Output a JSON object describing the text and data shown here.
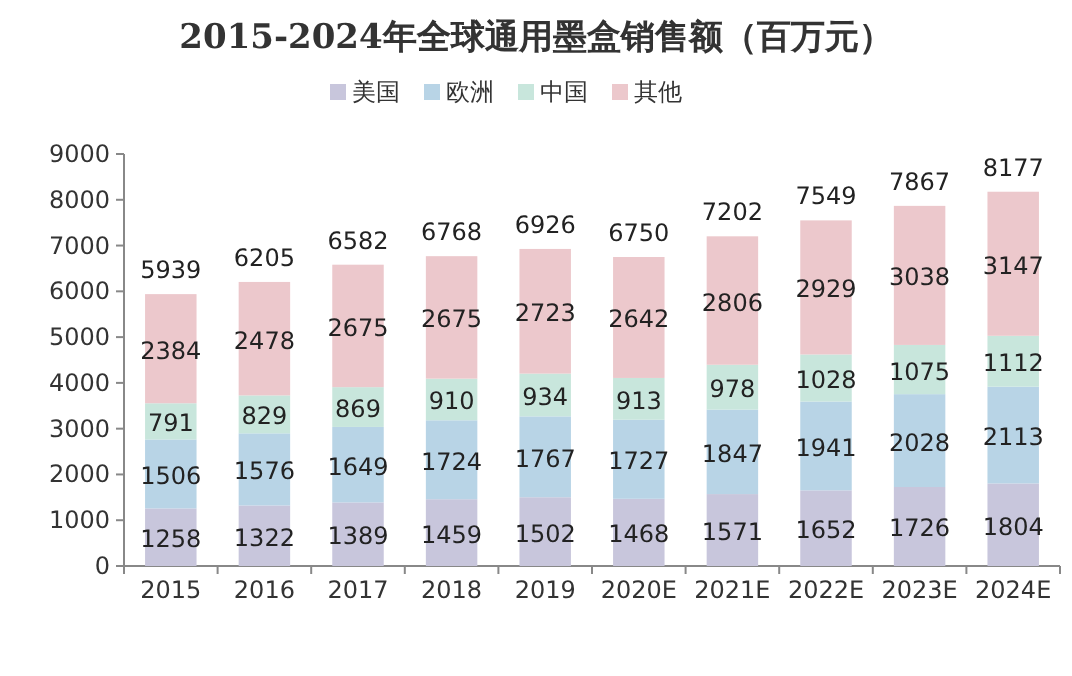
{
  "chart_data": {
    "type": "bar",
    "title": "2015-2024年全球通用墨盒销售额（百万元）",
    "stacked": true,
    "legend": "top",
    "data_labels": true,
    "categories": [
      "2015",
      "2016",
      "2017",
      "2018",
      "2019",
      "2020E",
      "2021E",
      "2022E",
      "2023E",
      "2024E"
    ],
    "series": [
      {
        "name": "美国",
        "color": "#c8c6dc",
        "values": [
          1258,
          1322,
          1389,
          1459,
          1502,
          1468,
          1571,
          1652,
          1726,
          1804
        ]
      },
      {
        "name": "欧洲",
        "color": "#b8d4e6",
        "values": [
          1506,
          1576,
          1649,
          1724,
          1767,
          1727,
          1847,
          1941,
          2028,
          2113
        ]
      },
      {
        "name": "中国",
        "color": "#c8e6dc",
        "values": [
          791,
          829,
          869,
          910,
          934,
          913,
          978,
          1028,
          1075,
          1112
        ]
      },
      {
        "name": "其他",
        "color": "#ecc8cc",
        "values": [
          2384,
          2478,
          2675,
          2675,
          2723,
          2642,
          2806,
          2929,
          3038,
          3147
        ]
      }
    ],
    "totals": [
      "5939",
      "6205",
      "6582",
      "6768",
      "6926",
      "6750",
      "7202",
      "7549",
      "7867",
      "8177"
    ],
    "ylim": [
      0,
      9000
    ],
    "yticks": [
      0,
      1000,
      2000,
      3000,
      4000,
      5000,
      6000,
      7000,
      8000,
      9000
    ]
  }
}
